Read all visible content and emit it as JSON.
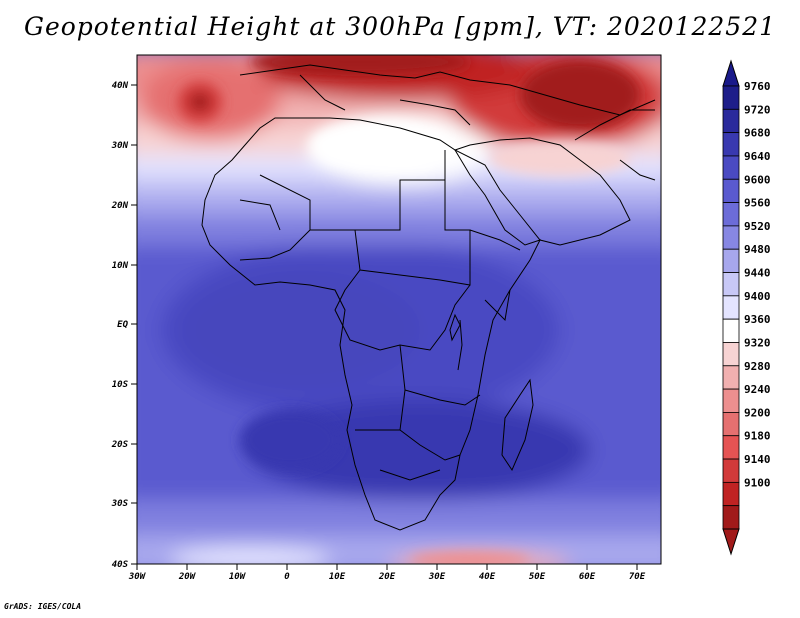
{
  "title": "Geopotential Height at 300hPa [gpm], VT: 2020122521",
  "credit": "GrADS: IGES/COLA",
  "map": {
    "region": "Africa",
    "lon_range": [
      -30,
      75
    ],
    "lat_range": [
      -40,
      45
    ],
    "lon_ticks": [
      "30W",
      "20W",
      "10W",
      "0",
      "10E",
      "20E",
      "30E",
      "40E",
      "50E",
      "60E",
      "70E"
    ],
    "lat_ticks": [
      "40N",
      "30N",
      "20N",
      "10N",
      "EQ",
      "10S",
      "20S",
      "30S",
      "40S"
    ]
  },
  "colorbar": {
    "levels": [
      "9100",
      "9140",
      "9180",
      "9200",
      "9240",
      "9280",
      "9320",
      "9360",
      "9400",
      "9440",
      "9480",
      "9520",
      "9560",
      "9600",
      "9640",
      "9680",
      "9720",
      "9760"
    ],
    "colors": [
      "#a11a1a",
      "#c02323",
      "#d23a3a",
      "#e55353",
      "#e57070",
      "#ed8f8f",
      "#f1b0b0",
      "#f7d3d3",
      "#ffffff",
      "#e4e4ff",
      "#c8c8f6",
      "#a7a7ed",
      "#8787e3",
      "#6c6cd8",
      "#5a5acf",
      "#4a4ac2",
      "#3939b0",
      "#2a2a9c",
      "#1e1e8a"
    ],
    "top_arrow_color": "#1a1a8a",
    "bottom_arrow_color": "#a11a1a"
  }
}
